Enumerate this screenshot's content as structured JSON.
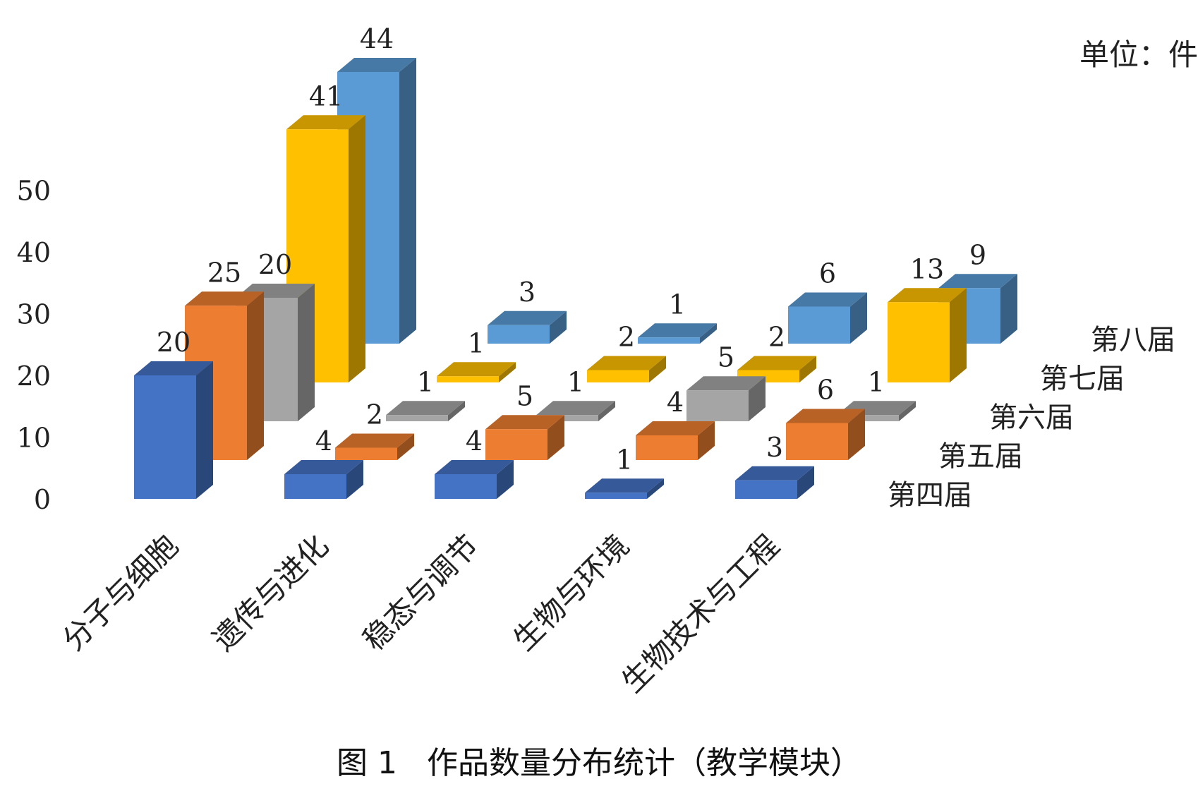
{
  "unit_label": "单位：件",
  "caption": "图 1   作品数量分布统计（教学模块）",
  "chart_data": {
    "type": "bar",
    "variant": "3d-column",
    "categories": [
      "分子与细胞",
      "遗传与进化",
      "稳态与调节",
      "生物与环境",
      "生物技术与工程"
    ],
    "series": [
      {
        "name": "第四届",
        "values": [
          20,
          4,
          4,
          1,
          3
        ],
        "color": "#4472C4"
      },
      {
        "name": "第五届",
        "values": [
          25,
          2,
          5,
          4,
          6
        ],
        "color": "#ED7D31"
      },
      {
        "name": "第六届",
        "values": [
          20,
          1,
          1,
          5,
          1
        ],
        "color": "#A5A5A5"
      },
      {
        "name": "第七届",
        "values": [
          41,
          1,
          2,
          2,
          13
        ],
        "color": "#FFC000"
      },
      {
        "name": "第八届",
        "values": [
          44,
          3,
          1,
          6,
          9
        ],
        "color": "#5B9BD5"
      }
    ],
    "y_ticks": [
      "0",
      "10",
      "20",
      "30",
      "40",
      "50"
    ],
    "ylim": [
      0,
      50
    ],
    "grid": false,
    "legend": "right"
  }
}
